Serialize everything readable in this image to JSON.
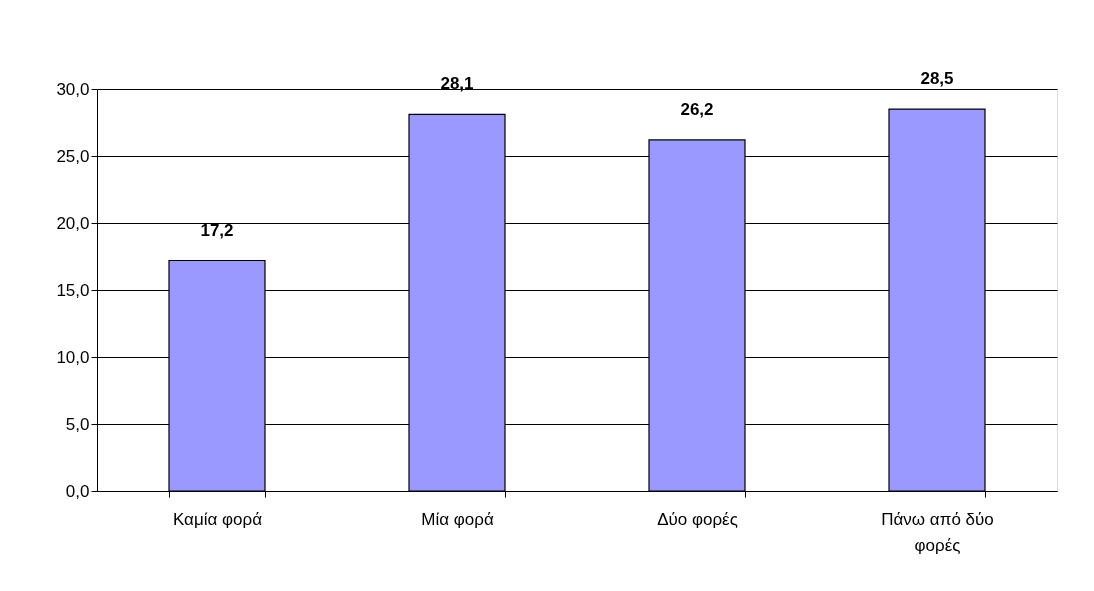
{
  "chart_data": {
    "type": "bar",
    "categories": [
      "Καμία φορά",
      "Μία φορά",
      "Δύο φορές",
      "Πάνω από δύο φορές"
    ],
    "values": [
      17.2,
      28.1,
      26.2,
      28.5
    ],
    "color": "#9999ff",
    "value_labels": [
      "17,2",
      "28,1",
      "26,2",
      "28,5"
    ],
    "ylim": [
      0,
      30
    ],
    "yticks": [
      {
        "value": 0,
        "label": "0,0"
      },
      {
        "value": 5,
        "label": "5,0"
      },
      {
        "value": 10,
        "label": "10,0"
      },
      {
        "value": 15,
        "label": "15,0"
      },
      {
        "value": 20,
        "label": "20,0"
      },
      {
        "value": 25,
        "label": "25,0"
      },
      {
        "value": 30,
        "label": "30,0"
      }
    ],
    "grid": "y",
    "legend": false
  }
}
